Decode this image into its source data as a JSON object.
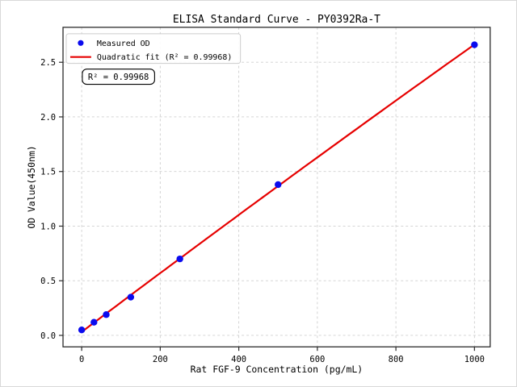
{
  "chart_data": {
    "type": "scatter",
    "title": "ELISA Standard Curve - PY0392Ra-T",
    "xlabel": "Rat FGF-9 Concentration (pg/mL)",
    "ylabel": "OD Value(450nm)",
    "xlim": [
      -47.5,
      1040
    ],
    "ylim": [
      -0.105,
      2.82
    ],
    "x_ticks": {
      "values": [
        0,
        200,
        400,
        600,
        800,
        1000
      ],
      "labels": [
        "0",
        "200",
        "400",
        "600",
        "800",
        "1000"
      ]
    },
    "y_ticks": {
      "values": [
        0.0,
        0.5,
        1.0,
        1.5,
        2.0,
        2.5
      ],
      "labels": [
        "0.0",
        "0.5",
        "1.0",
        "1.5",
        "2.0",
        "2.5"
      ]
    },
    "grid": true,
    "x": [
      0,
      31.25,
      62.5,
      125,
      250,
      500,
      1000
    ],
    "series": [
      {
        "name": "Measured OD",
        "kind": "scatter",
        "color": "#0b0bee",
        "values": [
          0.05,
          0.12,
          0.19,
          0.35,
          0.7,
          1.38,
          2.66
        ]
      },
      {
        "name": "Quadratic fit (R² = 0.99968)",
        "kind": "quadratic-fit-line",
        "color": "#e60000",
        "values": [
          0.05,
          0.12,
          0.19,
          0.35,
          0.7,
          1.38,
          2.66
        ]
      }
    ],
    "legend": {
      "position": "upper-left",
      "entries": [
        {
          "label": "Measured OD",
          "marker": "dot",
          "color": "#0b0bee"
        },
        {
          "label": "Quadratic fit (R² = 0.99968)",
          "marker": "line",
          "color": "#e60000"
        }
      ]
    },
    "annotation": {
      "text": "R² = 0.99968"
    },
    "colors": {
      "marker": "#0b0bee",
      "fit_line": "#e60000",
      "grid": "#cfcfcf",
      "spine": "#2a2a2a",
      "legend_border": "#cccccc",
      "background": "#ffffff"
    }
  }
}
